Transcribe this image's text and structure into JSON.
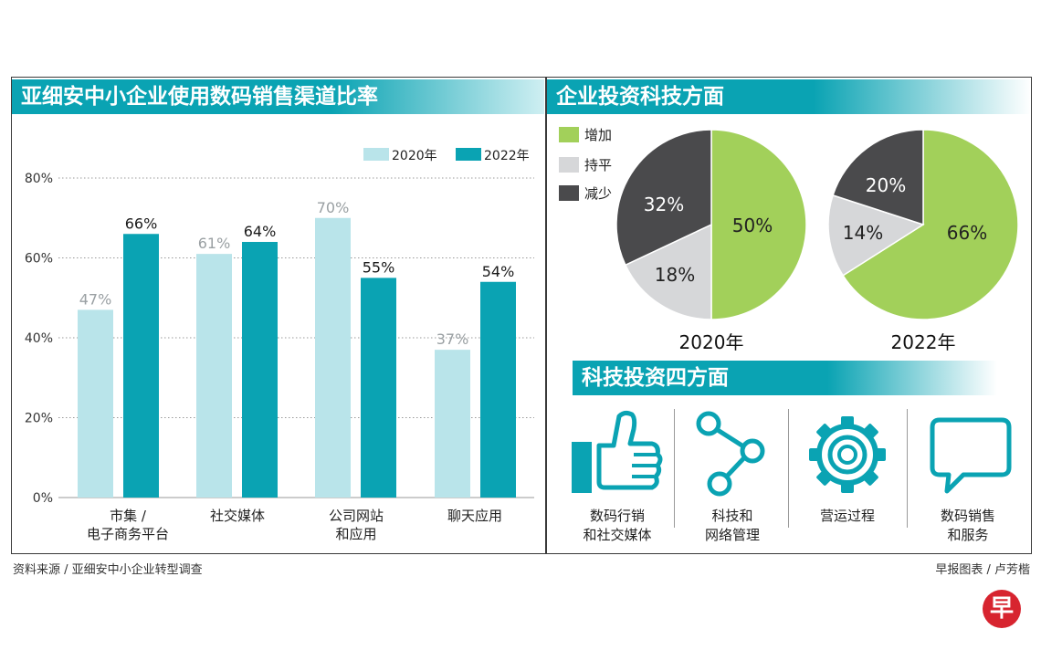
{
  "bar_section": {
    "title": "亚细安中小企业使用数码销售渠道比率"
  },
  "pie_section": {
    "title": "企业投资科技方面",
    "legend": [
      {
        "label": "增加",
        "color": "#a2d05a"
      },
      {
        "label": "持平",
        "color": "#d6d7d9"
      },
      {
        "label": "减少",
        "color": "#4a4a4c"
      }
    ]
  },
  "aspects": {
    "title": "科技投资四方面",
    "items": [
      {
        "line1": "数码行销",
        "line2": "和社交媒体",
        "icon": "thumbs-up-icon"
      },
      {
        "line1": "科技和",
        "line2": "网络管理",
        "icon": "network-share-icon"
      },
      {
        "line1": "营运过程",
        "line2": "",
        "icon": "gear-icon"
      },
      {
        "line1": "数码销售",
        "line2": "和服务",
        "icon": "speech-bubble-icon"
      }
    ]
  },
  "footer": {
    "source": "资料来源 / 亚细安中小企业转型调查",
    "credit": "早报图表 / 卢芳楷",
    "logo": "早"
  },
  "colors": {
    "accent": "#0aa3b3",
    "light": "#b9e4ea",
    "green": "#a2d05a",
    "gray": "#d6d7d9",
    "dark": "#4a4a4c"
  },
  "chart_data": [
    {
      "type": "bar",
      "title": "亚细安中小企业使用数码销售渠道比率",
      "categories": [
        {
          "line1": "市集 /",
          "line2": "电子商务平台"
        },
        {
          "line1": "社交媒体",
          "line2": ""
        },
        {
          "line1": "公司网站",
          "line2": "和应用"
        },
        {
          "line1": "聊天应用",
          "line2": ""
        }
      ],
      "series": [
        {
          "name": "2020年",
          "color": "#b9e4ea",
          "values": [
            47,
            61,
            70,
            37
          ],
          "labels": [
            "47%",
            "61%",
            "70%",
            "37%"
          ]
        },
        {
          "name": "2022年",
          "color": "#0aa3b3",
          "values": [
            66,
            64,
            55,
            54
          ],
          "labels": [
            "66%",
            "64%",
            "55%",
            "54%"
          ]
        }
      ],
      "yticks": [
        "0%",
        "20%",
        "40%",
        "60%",
        "80%"
      ],
      "ylim": [
        0,
        80
      ],
      "grid": true,
      "legend_position": "top-right"
    },
    {
      "type": "pie",
      "title": "2020年",
      "slices": [
        {
          "name": "增加",
          "value": 50,
          "label": "50%"
        },
        {
          "name": "持平",
          "value": 18,
          "label": "18%"
        },
        {
          "name": "减少",
          "value": 32,
          "label": "32%"
        }
      ]
    },
    {
      "type": "pie",
      "title": "2022年",
      "slices": [
        {
          "name": "增加",
          "value": 66,
          "label": "66%"
        },
        {
          "name": "持平",
          "value": 14,
          "label": "14%"
        },
        {
          "name": "减少",
          "value": 20,
          "label": "20%"
        }
      ]
    }
  ]
}
